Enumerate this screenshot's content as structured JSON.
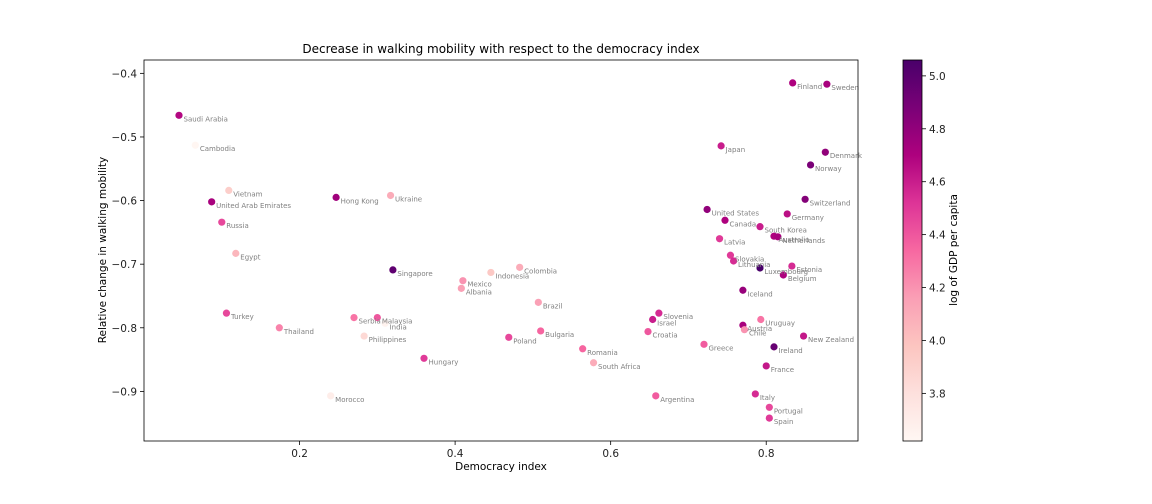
{
  "chart_data": {
    "type": "scatter",
    "title": "Decrease in walking mobility with respect to the democracy index",
    "xlabel": "Democracy index",
    "ylabel": "Relative change in walking mobility",
    "xlim": [
      0.0,
      0.918
    ],
    "ylim": [
      -0.978,
      -0.379
    ],
    "xticks": [
      0.2,
      0.4,
      0.6,
      0.8
    ],
    "yticks": [
      -0.4,
      -0.5,
      -0.6,
      -0.7,
      -0.8,
      -0.9
    ],
    "xtick_labels": [
      "0.2",
      "0.4",
      "0.6",
      "0.8"
    ],
    "ytick_labels": [
      "−0.4",
      "−0.5",
      "−0.6",
      "−0.7",
      "−0.8",
      "−0.9"
    ],
    "grid": false,
    "colorbar": {
      "label": "log of GDP per capita",
      "range": [
        3.62,
        5.06
      ],
      "ticks": [
        3.8,
        4.0,
        4.2,
        4.4,
        4.6,
        4.8,
        5.0
      ],
      "tick_labels": [
        "3.8",
        "4.0",
        "4.2",
        "4.4",
        "4.6",
        "4.8",
        "5.0"
      ],
      "colormap": [
        "#fff7f3",
        "#fde0dd",
        "#fcc5c0",
        "#fa9fb5",
        "#f768a1",
        "#dd3497",
        "#ae017e",
        "#7a0177",
        "#49006a"
      ]
    },
    "points": [
      {
        "label": "Saudi Arabia",
        "x": 0.045,
        "y": -0.466,
        "c": 4.68
      },
      {
        "label": "Cambodia",
        "x": 0.066,
        "y": -0.513,
        "c": 3.63
      },
      {
        "label": "Vietnam",
        "x": 0.109,
        "y": -0.584,
        "c": 3.92
      },
      {
        "label": "United Arab Emirates",
        "x": 0.087,
        "y": -0.602,
        "c": 4.72
      },
      {
        "label": "Russia",
        "x": 0.1,
        "y": -0.634,
        "c": 4.45
      },
      {
        "label": "Egypt",
        "x": 0.118,
        "y": -0.683,
        "c": 4.05
      },
      {
        "label": "Turkey",
        "x": 0.106,
        "y": -0.777,
        "c": 4.45
      },
      {
        "label": "Thailand",
        "x": 0.174,
        "y": -0.8,
        "c": 4.25
      },
      {
        "label": "Hong Kong",
        "x": 0.247,
        "y": -0.595,
        "c": 4.75
      },
      {
        "label": "Ukraine",
        "x": 0.317,
        "y": -0.592,
        "c": 4.1
      },
      {
        "label": "Singapore",
        "x": 0.32,
        "y": -0.709,
        "c": 4.98
      },
      {
        "label": "Morocco",
        "x": 0.24,
        "y": -0.907,
        "c": 3.7
      },
      {
        "label": "Serbia",
        "x": 0.27,
        "y": -0.784,
        "c": 4.3
      },
      {
        "label": "Malaysia",
        "x": 0.3,
        "y": -0.784,
        "c": 4.4
      },
      {
        "label": "India",
        "x": 0.31,
        "y": -0.793,
        "c": 3.65
      },
      {
        "label": "Philippines",
        "x": 0.283,
        "y": -0.813,
        "c": 3.85
      },
      {
        "label": "Hungary",
        "x": 0.36,
        "y": -0.848,
        "c": 4.5
      },
      {
        "label": "Mexico",
        "x": 0.41,
        "y": -0.726,
        "c": 4.2
      },
      {
        "label": "Albania",
        "x": 0.408,
        "y": -0.738,
        "c": 4.15
      },
      {
        "label": "Indonesia",
        "x": 0.446,
        "y": -0.713,
        "c": 3.95
      },
      {
        "label": "Colombia",
        "x": 0.483,
        "y": -0.705,
        "c": 4.1
      },
      {
        "label": "Brazil",
        "x": 0.507,
        "y": -0.76,
        "c": 4.15
      },
      {
        "label": "Poland",
        "x": 0.469,
        "y": -0.815,
        "c": 4.45
      },
      {
        "label": "Bulgaria",
        "x": 0.51,
        "y": -0.805,
        "c": 4.35
      },
      {
        "label": "Romania",
        "x": 0.564,
        "y": -0.833,
        "c": 4.35
      },
      {
        "label": "South Africa",
        "x": 0.578,
        "y": -0.855,
        "c": 4.1
      },
      {
        "label": "Argentina",
        "x": 0.658,
        "y": -0.907,
        "c": 4.38
      },
      {
        "label": "Slovenia",
        "x": 0.662,
        "y": -0.777,
        "c": 4.55
      },
      {
        "label": "Israel",
        "x": 0.654,
        "y": -0.787,
        "c": 4.6
      },
      {
        "label": "Croatia",
        "x": 0.648,
        "y": -0.806,
        "c": 4.4
      },
      {
        "label": "Greece",
        "x": 0.72,
        "y": -0.826,
        "c": 4.38
      },
      {
        "label": "Japan",
        "x": 0.742,
        "y": -0.514,
        "c": 4.6
      },
      {
        "label": "United States",
        "x": 0.724,
        "y": -0.614,
        "c": 4.8
      },
      {
        "label": "Canada",
        "x": 0.747,
        "y": -0.631,
        "c": 4.7
      },
      {
        "label": "Latvia",
        "x": 0.74,
        "y": -0.66,
        "c": 4.5
      },
      {
        "label": "South Korea",
        "x": 0.792,
        "y": -0.641,
        "c": 4.6
      },
      {
        "label": "Slovakia",
        "x": 0.754,
        "y": -0.686,
        "c": 4.5
      },
      {
        "label": "Lithuania",
        "x": 0.758,
        "y": -0.695,
        "c": 4.55
      },
      {
        "label": "Luxembourg",
        "x": 0.792,
        "y": -0.706,
        "c": 5.06
      },
      {
        "label": "Estonia",
        "x": 0.833,
        "y": -0.703,
        "c": 4.55
      },
      {
        "label": "Belgium",
        "x": 0.822,
        "y": -0.717,
        "c": 4.7
      },
      {
        "label": "Iceland",
        "x": 0.77,
        "y": -0.741,
        "c": 4.78
      },
      {
        "label": "Germany",
        "x": 0.827,
        "y": -0.621,
        "c": 4.65
      },
      {
        "label": "Australia",
        "x": 0.81,
        "y": -0.656,
        "c": 4.7
      },
      {
        "label": "Netherlands",
        "x": 0.815,
        "y": -0.657,
        "c": 4.72
      },
      {
        "label": "Switzerland",
        "x": 0.85,
        "y": -0.598,
        "c": 4.85
      },
      {
        "label": "Norway",
        "x": 0.857,
        "y": -0.544,
        "c": 4.88
      },
      {
        "label": "Denmark",
        "x": 0.876,
        "y": -0.524,
        "c": 4.8
      },
      {
        "label": "Finland",
        "x": 0.834,
        "y": -0.415,
        "c": 4.7
      },
      {
        "label": "Sweden",
        "x": 0.878,
        "y": -0.417,
        "c": 4.72
      },
      {
        "label": "Uruguay",
        "x": 0.793,
        "y": -0.787,
        "c": 4.3
      },
      {
        "label": "Austria",
        "x": 0.77,
        "y": -0.796,
        "c": 4.72
      },
      {
        "label": "Chile",
        "x": 0.772,
        "y": -0.803,
        "c": 4.2
      },
      {
        "label": "New Zealand",
        "x": 0.848,
        "y": -0.813,
        "c": 4.62
      },
      {
        "label": "Ireland",
        "x": 0.81,
        "y": -0.83,
        "c": 4.95
      },
      {
        "label": "France",
        "x": 0.8,
        "y": -0.86,
        "c": 4.62
      },
      {
        "label": "Italy",
        "x": 0.786,
        "y": -0.904,
        "c": 4.55
      },
      {
        "label": "Portugal",
        "x": 0.804,
        "y": -0.925,
        "c": 4.45
      },
      {
        "label": "Spain",
        "x": 0.804,
        "y": -0.942,
        "c": 4.5
      }
    ]
  }
}
